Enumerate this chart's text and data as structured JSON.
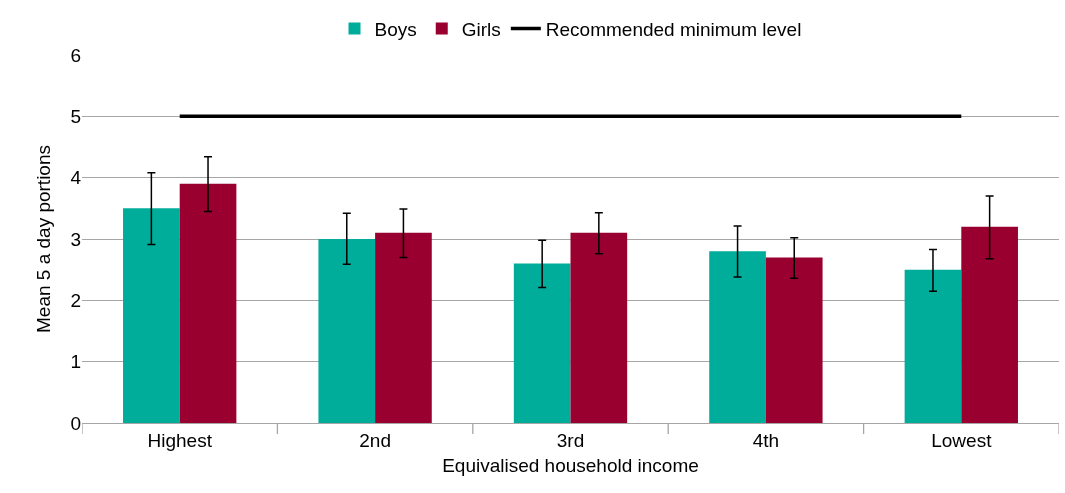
{
  "chart_data": {
    "type": "bar",
    "xlabel": "Equivalised household income",
    "ylabel": "Mean 5 a day portions",
    "categories": [
      "Highest",
      "2nd",
      "3rd",
      "4th",
      "Lowest"
    ],
    "series": [
      {
        "name": "Boys",
        "color": "#00ad9a",
        "values": [
          3.5,
          3.0,
          2.6,
          2.8,
          2.5
        ],
        "errors": [
          [
            2.91,
            4.08
          ],
          [
            2.59,
            3.42
          ],
          [
            2.21,
            2.98
          ],
          [
            2.38,
            3.21
          ],
          [
            2.15,
            2.83
          ]
        ]
      },
      {
        "name": "Girls",
        "color": "#990030",
        "values": [
          3.9,
          3.1,
          3.1,
          2.7,
          3.2
        ],
        "errors": [
          [
            3.45,
            4.34
          ],
          [
            2.7,
            3.49
          ],
          [
            2.76,
            3.43
          ],
          [
            2.36,
            3.02
          ],
          [
            2.68,
            3.7
          ]
        ]
      },
      {
        "name": "Recommended minimum level",
        "type": "line",
        "color": "#000000",
        "values": [
          5,
          5,
          5,
          5,
          5
        ],
        "marker": "none",
        "line_style": "solid"
      }
    ],
    "ylim": [
      0,
      6
    ],
    "yticks": [
      0,
      1,
      2,
      3,
      4,
      5,
      6
    ],
    "grid": "y",
    "legend": "top"
  }
}
